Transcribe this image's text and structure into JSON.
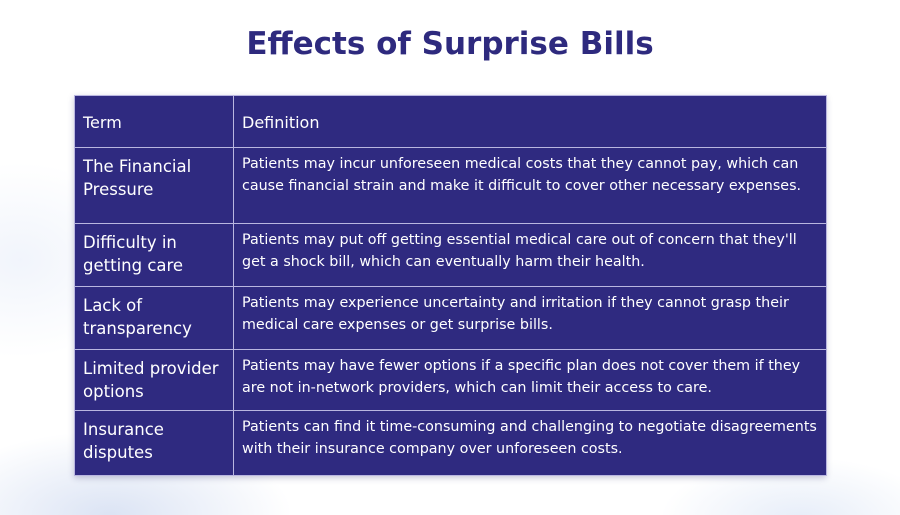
{
  "title": "Effects of Surprise Bills",
  "table": {
    "headers": [
      "Term",
      "Definition"
    ],
    "rows": [
      {
        "term": "The Financial Pressure",
        "definition": "Patients may incur unforeseen medical costs that they cannot pay, which can cause financial strain and make it difficult to cover other necessary expenses."
      },
      {
        "term": "Difficulty in getting care",
        "definition": "Patients may put off getting essential medical care out of concern that they'll get a shock bill, which can eventually harm their health."
      },
      {
        "term": "Lack of transparency",
        "definition": "Patients may experience uncertainty and irritation if they cannot grasp their medical care expenses or get surprise bills."
      },
      {
        "term": "Limited provider options",
        "definition": "Patients may have fewer options if a specific plan does not cover them if they are not in-network providers, which can limit their access to care."
      },
      {
        "term": "Insurance disputes",
        "definition": "Patients can find it time-consuming and challenging to negotiate disagreements with their insurance company over unforeseen costs."
      }
    ]
  },
  "colors": {
    "title": "#2e2a7e",
    "table_background": "#2f2a80",
    "table_border": "#b9b6e0",
    "table_text": "#ffffff"
  }
}
